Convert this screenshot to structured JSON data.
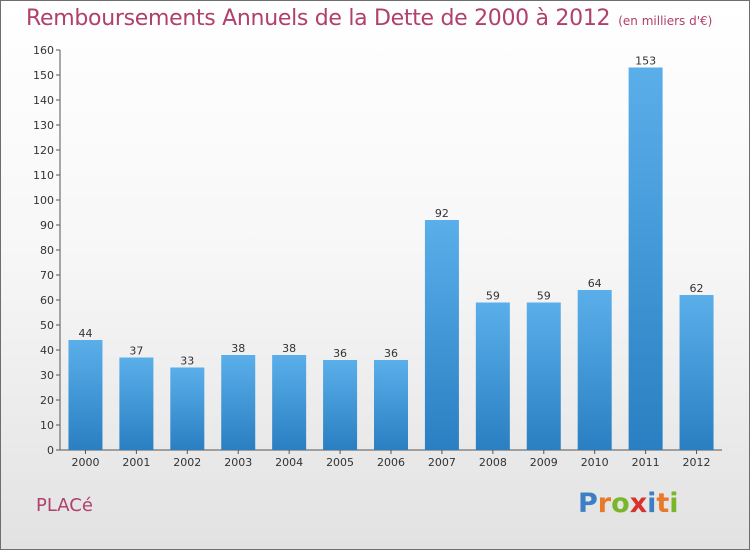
{
  "title": "Remboursements Annuels de la Dette de 2000 à 2012",
  "unit": "(en milliers d'€)",
  "town": "PLACé",
  "brand": {
    "letters": [
      "P",
      "r",
      "o",
      "x",
      "i",
      "t",
      "i"
    ],
    "colors": [
      "#3d7fc4",
      "#e8792b",
      "#79b62c",
      "#d9342b",
      "#3d7fc4",
      "#e8792b",
      "#79b62c"
    ]
  },
  "colors": {
    "title": "#b0406c",
    "bar_top": "#5aafea",
    "bar_bottom": "#2a7fc2"
  },
  "chart_data": {
    "type": "bar",
    "categories": [
      "2000",
      "2001",
      "2002",
      "2003",
      "2004",
      "2005",
      "2006",
      "2007",
      "2008",
      "2009",
      "2010",
      "2011",
      "2012"
    ],
    "values": [
      44,
      37,
      33,
      38,
      38,
      36,
      36,
      92,
      59,
      59,
      64,
      153,
      62
    ],
    "ylim": [
      0,
      160
    ],
    "yticks": [
      0,
      10,
      20,
      30,
      40,
      50,
      60,
      70,
      80,
      90,
      100,
      110,
      120,
      130,
      140,
      150,
      160
    ],
    "grid": false,
    "legend": "none"
  }
}
